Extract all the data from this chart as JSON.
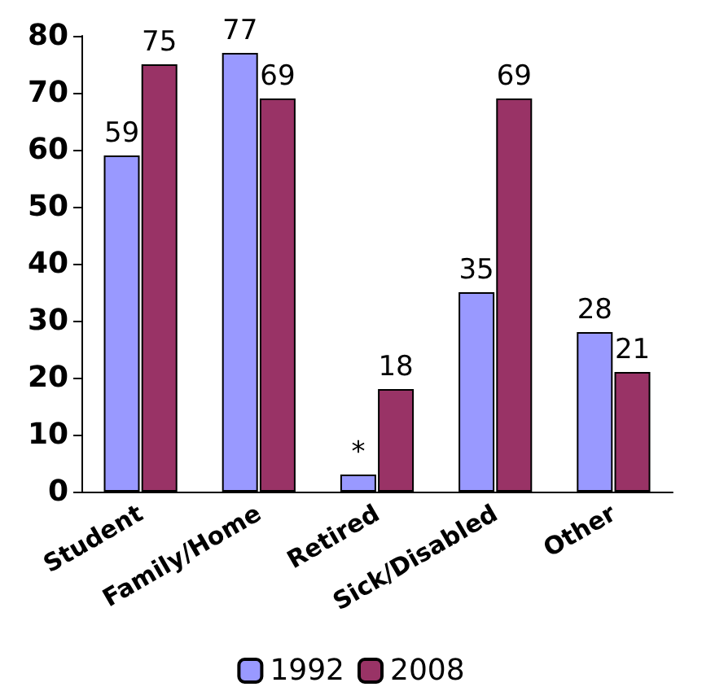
{
  "chart_data": {
    "type": "bar",
    "categories": [
      "Student",
      "Family/Home",
      "Retired",
      "Sick/Disabled",
      "Other"
    ],
    "series": [
      {
        "name": "1992",
        "color": "#9999ff",
        "values": [
          59,
          77,
          3,
          35,
          28
        ],
        "value_labels": [
          "59",
          "77",
          "*",
          "35",
          "28"
        ]
      },
      {
        "name": "2008",
        "color": "#993366",
        "values": [
          75,
          69,
          18,
          69,
          21
        ],
        "value_labels": [
          "75",
          "69",
          "18",
          "69",
          "21"
        ]
      }
    ],
    "ylim": [
      0,
      80
    ],
    "yticks": [
      0,
      10,
      20,
      30,
      40,
      50,
      60,
      70,
      80
    ],
    "grid": false,
    "legend": "bottom"
  }
}
